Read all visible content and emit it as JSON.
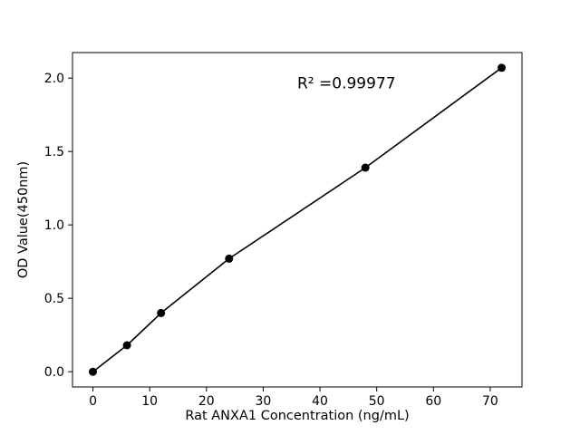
{
  "chart_data": {
    "type": "scatter",
    "x": [
      0,
      6,
      12,
      24,
      48,
      72
    ],
    "y": [
      0.0,
      0.18,
      0.4,
      0.77,
      1.39,
      2.07
    ],
    "xlabel": "Rat ANXA1 Concentration (ng/mL)",
    "ylabel": "OD Value(450nm)",
    "xlim": [
      -3.6,
      75.6
    ],
    "ylim": [
      -0.104,
      2.174
    ],
    "xticks": {
      "values": [
        0,
        10,
        20,
        30,
        40,
        50,
        60,
        70
      ],
      "labels": [
        "0",
        "10",
        "20",
        "30",
        "40",
        "50",
        "60",
        "70"
      ]
    },
    "yticks": {
      "values": [
        0.0,
        0.5,
        1.0,
        1.5,
        2.0
      ],
      "labels": [
        "0.0",
        "0.5",
        "1.0",
        "1.5",
        "2.0"
      ]
    },
    "annotation": {
      "text": "R² =0.99977",
      "x": 36,
      "y": 1.93
    },
    "line": true,
    "grid": false,
    "legend": "none",
    "marker_color": "#000000",
    "line_color": "#000000",
    "text_color": "#000000",
    "background": "#ffffff"
  }
}
